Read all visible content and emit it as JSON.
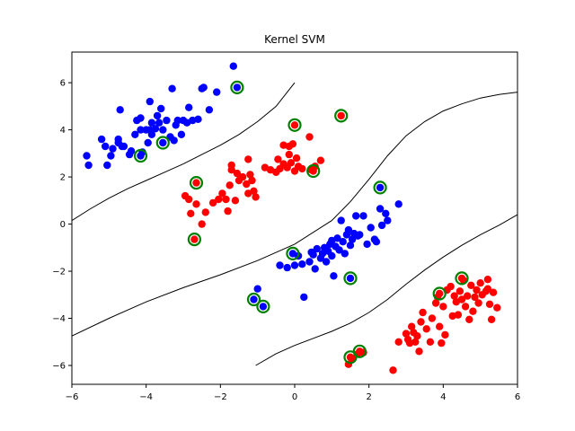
{
  "chart_data": {
    "type": "scatter",
    "title": "Kernel SVM",
    "xlabel": "",
    "ylabel": "",
    "xlim": [
      -6,
      6
    ],
    "ylim": [
      -6.8,
      7.3
    ],
    "xticks": [
      "−6",
      "−4",
      "−2",
      "0",
      "2",
      "4",
      "6"
    ],
    "xtick_values": [
      -6,
      -4,
      -2,
      0,
      2,
      4,
      6
    ],
    "yticks": [
      "−6",
      "−4",
      "−2",
      "0",
      "2",
      "4",
      "6"
    ],
    "ytick_values": [
      -6,
      -4,
      -2,
      0,
      2,
      4,
      6
    ],
    "grid": false,
    "colors": {
      "class_a": "#0000ff",
      "class_b": "#ff0000",
      "support_vector": "#008000",
      "boundary": "#000000"
    },
    "series": [
      {
        "color": "#0000ff",
        "points": [
          [
            -5.6,
            2.9
          ],
          [
            -5.55,
            2.5
          ],
          [
            -5.05,
            2.5
          ],
          [
            -4.95,
            2.9
          ],
          [
            -5.1,
            3.3
          ],
          [
            -5.2,
            3.6
          ],
          [
            -4.9,
            3.2
          ],
          [
            -4.75,
            3.45
          ],
          [
            -4.75,
            3.6
          ],
          [
            -4.65,
            3.3
          ],
          [
            -4.6,
            3.3
          ],
          [
            -4.45,
            2.95
          ],
          [
            -4.4,
            3.1
          ],
          [
            -4.3,
            3.8
          ],
          [
            -4.25,
            4.4
          ],
          [
            -4.15,
            4.0
          ],
          [
            -4.1,
            3.05
          ],
          [
            -4.0,
            4.0
          ],
          [
            -3.95,
            3.45
          ],
          [
            -3.9,
            4.0
          ],
          [
            -3.85,
            3.8
          ],
          [
            -3.85,
            4.3
          ],
          [
            -3.75,
            4.05
          ],
          [
            -3.7,
            4.6
          ],
          [
            -3.65,
            4.3
          ],
          [
            -3.6,
            4.9
          ],
          [
            -3.55,
            4.0
          ],
          [
            -3.45,
            4.4
          ],
          [
            -3.35,
            3.7
          ],
          [
            -3.25,
            3.55
          ],
          [
            -3.2,
            4.2
          ],
          [
            -3.15,
            4.4
          ],
          [
            -3.05,
            3.8
          ],
          [
            -3.0,
            4.4
          ],
          [
            -2.9,
            4.3
          ],
          [
            -2.85,
            4.95
          ],
          [
            -2.75,
            4.4
          ],
          [
            -2.6,
            4.45
          ],
          [
            -2.5,
            5.75
          ],
          [
            -2.45,
            5.8
          ],
          [
            -2.3,
            4.85
          ],
          [
            -2.1,
            5.6
          ],
          [
            -4.7,
            4.85
          ],
          [
            -4.15,
            4.5
          ],
          [
            -3.9,
            5.2
          ],
          [
            -3.3,
            5.75
          ],
          [
            -1.65,
            6.7
          ],
          [
            -1.55,
            5.8
          ],
          [
            -3.55,
            3.45
          ],
          [
            -4.15,
            2.9
          ],
          [
            0.25,
            -3.1
          ],
          [
            -0.4,
            -1.75
          ],
          [
            -0.2,
            -1.85
          ],
          [
            0.0,
            -1.75
          ],
          [
            0.1,
            -1.35
          ],
          [
            0.2,
            -1.7
          ],
          [
            0.4,
            -1.6
          ],
          [
            0.45,
            -1.2
          ],
          [
            0.55,
            -1.9
          ],
          [
            0.6,
            -1.05
          ],
          [
            0.7,
            -1.45
          ],
          [
            0.75,
            -1.25
          ],
          [
            0.8,
            -1.0
          ],
          [
            0.85,
            -1.6
          ],
          [
            0.9,
            -1.15
          ],
          [
            0.95,
            -0.85
          ],
          [
            1.0,
            -1.35
          ],
          [
            1.05,
            -2.2
          ],
          [
            1.1,
            -0.95
          ],
          [
            1.15,
            -0.6
          ],
          [
            1.2,
            -1.1
          ],
          [
            1.25,
            0.15
          ],
          [
            1.3,
            -0.75
          ],
          [
            1.35,
            -1.25
          ],
          [
            1.4,
            -0.45
          ],
          [
            1.45,
            -0.25
          ],
          [
            1.5,
            -0.9
          ],
          [
            1.55,
            -0.65
          ],
          [
            1.6,
            -0.4
          ],
          [
            1.65,
            0.35
          ],
          [
            1.7,
            -0.5
          ],
          [
            1.75,
            -0.45
          ],
          [
            1.85,
            0.35
          ],
          [
            1.95,
            -0.85
          ],
          [
            2.05,
            -0.15
          ],
          [
            2.15,
            -0.65
          ],
          [
            2.2,
            -0.75
          ],
          [
            2.3,
            0.65
          ],
          [
            2.35,
            -0.05
          ],
          [
            2.45,
            0.45
          ],
          [
            2.5,
            0.15
          ],
          [
            2.8,
            0.85
          ],
          [
            -0.05,
            -1.25
          ],
          [
            1.5,
            -2.3
          ],
          [
            2.3,
            1.55
          ],
          [
            -1.1,
            -3.2
          ],
          [
            -1.0,
            -2.75
          ],
          [
            -0.85,
            -3.5
          ],
          [
            0.5,
            -1.3
          ],
          [
            1.0,
            -0.7
          ]
        ]
      },
      {
        "color": "#ff0000",
        "points": [
          [
            -2.95,
            1.2
          ],
          [
            -2.85,
            1.05
          ],
          [
            -2.8,
            0.45
          ],
          [
            -2.65,
            0.85
          ],
          [
            -2.5,
            0.0
          ],
          [
            -2.4,
            0.5
          ],
          [
            -2.2,
            0.9
          ],
          [
            -2.05,
            1.05
          ],
          [
            -1.95,
            1.3
          ],
          [
            -1.85,
            1.05
          ],
          [
            -1.8,
            0.55
          ],
          [
            -1.75,
            1.65
          ],
          [
            -1.6,
            1.0
          ],
          [
            -1.55,
            2.15
          ],
          [
            -1.5,
            1.85
          ],
          [
            -1.4,
            2.0
          ],
          [
            -1.3,
            1.7
          ],
          [
            -1.25,
            1.3
          ],
          [
            -1.2,
            2.1
          ],
          [
            -1.15,
            1.85
          ],
          [
            -1.1,
            1.4
          ],
          [
            -1.05,
            1.15
          ],
          [
            -1.7,
            2.5
          ],
          [
            -1.7,
            2.3
          ],
          [
            -0.8,
            2.4
          ],
          [
            -0.65,
            2.3
          ],
          [
            -0.5,
            2.2
          ],
          [
            -0.45,
            2.75
          ],
          [
            -0.4,
            2.35
          ],
          [
            -0.3,
            2.55
          ],
          [
            -0.2,
            2.4
          ],
          [
            -0.15,
            2.95
          ],
          [
            -0.1,
            2.6
          ],
          [
            0.0,
            2.25
          ],
          [
            0.05,
            2.8
          ],
          [
            0.1,
            2.45
          ],
          [
            0.2,
            2.35
          ],
          [
            -0.3,
            3.35
          ],
          [
            -0.15,
            3.3
          ],
          [
            -0.05,
            3.4
          ],
          [
            0.4,
            3.7
          ],
          [
            0.45,
            2.3
          ],
          [
            0.55,
            2.45
          ],
          [
            0.7,
            2.7
          ],
          [
            -1.25,
            2.75
          ],
          [
            -2.65,
            1.75
          ],
          [
            -2.7,
            -0.65
          ],
          [
            0.0,
            4.2
          ],
          [
            1.25,
            4.6
          ],
          [
            0.5,
            2.25
          ],
          [
            1.45,
            -5.95
          ],
          [
            1.55,
            -5.7
          ],
          [
            1.7,
            -5.5
          ],
          [
            1.85,
            -5.45
          ],
          [
            2.65,
            -6.2
          ],
          [
            2.8,
            -5.0
          ],
          [
            3.0,
            -4.65
          ],
          [
            3.05,
            -4.9
          ],
          [
            3.1,
            -5.05
          ],
          [
            3.15,
            -4.35
          ],
          [
            3.2,
            -4.6
          ],
          [
            3.25,
            -5.0
          ],
          [
            3.3,
            -4.75
          ],
          [
            3.35,
            -5.4
          ],
          [
            3.4,
            -4.15
          ],
          [
            3.45,
            -3.75
          ],
          [
            3.55,
            -4.45
          ],
          [
            3.65,
            -5.0
          ],
          [
            3.7,
            -4.0
          ],
          [
            3.8,
            -3.35
          ],
          [
            3.85,
            -3.1
          ],
          [
            3.9,
            -4.35
          ],
          [
            3.95,
            -5.05
          ],
          [
            4.0,
            -3.5
          ],
          [
            4.05,
            -4.7
          ],
          [
            4.1,
            -2.8
          ],
          [
            4.2,
            -2.65
          ],
          [
            4.25,
            -3.9
          ],
          [
            4.3,
            -3.05
          ],
          [
            4.35,
            -3.3
          ],
          [
            4.4,
            -3.85
          ],
          [
            4.45,
            -2.85
          ],
          [
            4.5,
            -3.2
          ],
          [
            4.55,
            -2.4
          ],
          [
            4.6,
            -3.5
          ],
          [
            4.65,
            -3.05
          ],
          [
            4.7,
            -4.05
          ],
          [
            4.75,
            -2.6
          ],
          [
            4.8,
            -3.7
          ],
          [
            4.85,
            -3.1
          ],
          [
            4.9,
            -2.8
          ],
          [
            4.95,
            -3.35
          ],
          [
            5.0,
            -2.5
          ],
          [
            5.05,
            -3.0
          ],
          [
            5.15,
            -2.85
          ],
          [
            5.2,
            -2.75
          ],
          [
            5.25,
            -3.4
          ],
          [
            5.3,
            -4.05
          ],
          [
            5.35,
            -2.9
          ],
          [
            5.45,
            -3.55
          ],
          [
            5.2,
            -2.35
          ],
          [
            3.9,
            -2.95
          ],
          [
            4.5,
            -2.3
          ],
          [
            1.75,
            -5.4
          ],
          [
            1.5,
            -5.65
          ]
        ]
      }
    ],
    "support_vectors": [
      [
        -1.55,
        5.8
      ],
      [
        -3.55,
        3.45
      ],
      [
        -4.15,
        2.9
      ],
      [
        -2.65,
        1.75
      ],
      [
        -2.7,
        -0.65
      ],
      [
        0.0,
        4.2
      ],
      [
        1.25,
        4.6
      ],
      [
        0.5,
        2.25
      ],
      [
        2.3,
        1.55
      ],
      [
        -0.05,
        -1.25
      ],
      [
        1.5,
        -2.3
      ],
      [
        -1.1,
        -3.2
      ],
      [
        -0.85,
        -3.5
      ],
      [
        3.9,
        -2.95
      ],
      [
        4.5,
        -2.3
      ],
      [
        1.75,
        -5.4
      ],
      [
        1.5,
        -5.65
      ]
    ],
    "decision_boundaries": [
      [
        [
          -6,
          0.15
        ],
        [
          -5.5,
          0.65
        ],
        [
          -5,
          1.1
        ],
        [
          -4.5,
          1.5
        ],
        [
          -4,
          1.85
        ],
        [
          -3.5,
          2.2
        ],
        [
          -3,
          2.55
        ],
        [
          -2.5,
          2.95
        ],
        [
          -2,
          3.35
        ],
        [
          -1.5,
          3.8
        ],
        [
          -1,
          4.35
        ],
        [
          -0.5,
          5.0
        ],
        [
          0,
          6.0
        ]
      ],
      [
        [
          -6,
          -4.75
        ],
        [
          -5,
          -4.0
        ],
        [
          -4,
          -3.3
        ],
        [
          -3,
          -2.7
        ],
        [
          -2,
          -2.15
        ],
        [
          -1,
          -1.55
        ],
        [
          0,
          -0.85
        ],
        [
          1,
          0.15
        ],
        [
          1.5,
          0.95
        ],
        [
          2,
          1.9
        ],
        [
          2.5,
          2.9
        ],
        [
          3,
          3.75
        ],
        [
          3.5,
          4.35
        ],
        [
          4,
          4.8
        ],
        [
          4.5,
          5.1
        ],
        [
          5,
          5.35
        ],
        [
          5.5,
          5.5
        ],
        [
          6,
          5.6
        ]
      ],
      [
        [
          -1.05,
          -6.0
        ],
        [
          -0.5,
          -5.5
        ],
        [
          0,
          -5.15
        ],
        [
          0.5,
          -4.85
        ],
        [
          1,
          -4.55
        ],
        [
          1.5,
          -4.2
        ],
        [
          2,
          -3.75
        ],
        [
          2.5,
          -3.2
        ],
        [
          3,
          -2.55
        ],
        [
          3.5,
          -1.95
        ],
        [
          4,
          -1.4
        ],
        [
          4.5,
          -0.9
        ],
        [
          5,
          -0.45
        ],
        [
          5.5,
          -0.05
        ],
        [
          6,
          0.4
        ]
      ]
    ]
  }
}
